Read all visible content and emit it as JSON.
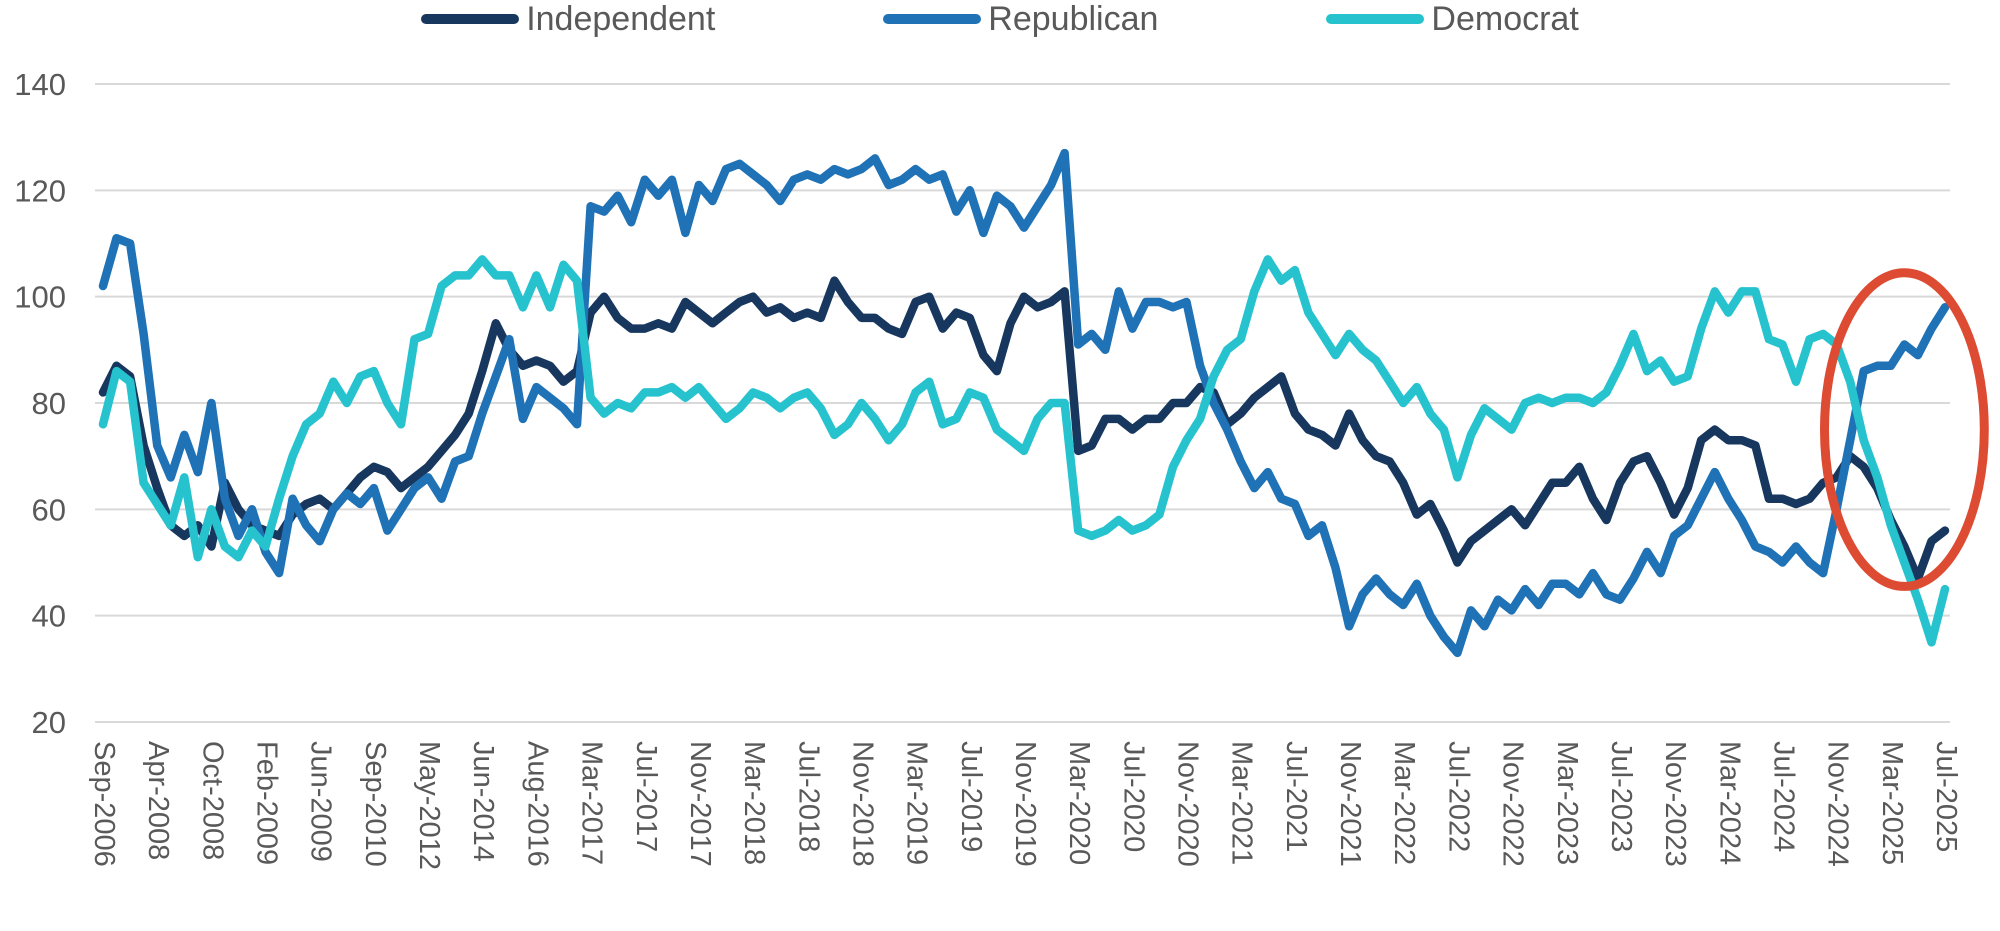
{
  "legend": {
    "position": "top-center"
  },
  "axes": {
    "y_tick_label_color": "#595959",
    "x_tick_label_color": "#595959",
    "gridline_color": "#D9D9D9"
  },
  "chart_data": {
    "type": "line",
    "title": "",
    "xlabel": "",
    "ylabel": "",
    "ylim": [
      20,
      140
    ],
    "y_ticks": [
      140,
      120,
      100,
      80,
      60,
      40,
      20
    ],
    "grid": "horizontal",
    "legend_position": "top",
    "n_points": 137,
    "label_every_n_points": 4,
    "x_tick_labels": [
      "Sep-2006",
      "Apr-2008",
      "Oct-2008",
      "Feb-2009",
      "Jun-2009",
      "Sep-2010",
      "May-2012",
      "Jun-2014",
      "Aug-2016",
      "Mar-2017",
      "Jul-2017",
      "Nov-2017",
      "Mar-2018",
      "Jul-2018",
      "Nov-2018",
      "Mar-2019",
      "Jul-2019",
      "Nov-2019",
      "Mar-2020",
      "Jul-2020",
      "Nov-2020",
      "Mar-2021",
      "Jul-2021",
      "Nov-2021",
      "Mar-2022",
      "Jul-2022",
      "Nov-2022",
      "Mar-2023",
      "Jul-2023",
      "Nov-2023",
      "Mar-2024",
      "Jul-2024",
      "Nov-2024",
      "Mar-2025",
      "Jul-2025"
    ],
    "series": [
      {
        "name": "Independent",
        "color": "#17375E",
        "values": [
          82,
          87,
          85,
          72,
          64,
          57,
          55,
          57,
          53,
          65,
          60,
          57,
          56,
          55,
          59,
          61,
          62,
          60,
          63,
          66,
          68,
          67,
          64,
          66,
          68,
          71,
          74,
          78,
          86,
          95,
          90,
          87,
          88,
          87,
          84,
          86,
          97,
          100,
          96,
          94,
          94,
          95,
          94,
          99,
          97,
          95,
          97,
          99,
          100,
          97,
          98,
          96,
          97,
          96,
          103,
          99,
          96,
          96,
          94,
          93,
          99,
          100,
          94,
          97,
          96,
          89,
          86,
          95,
          100,
          98,
          99,
          101,
          71,
          72,
          77,
          77,
          75,
          77,
          77,
          80,
          80,
          83,
          82,
          76,
          78,
          81,
          83,
          85,
          78,
          75,
          74,
          72,
          78,
          73,
          70,
          69,
          65,
          59,
          61,
          56,
          50,
          54,
          56,
          58,
          60,
          57,
          61,
          65,
          65,
          68,
          62,
          58,
          65,
          69,
          70,
          65,
          59,
          64,
          73,
          75,
          73,
          73,
          72,
          62,
          62,
          61,
          62,
          65,
          66,
          70,
          68,
          64,
          58,
          53,
          47,
          54,
          56
        ]
      },
      {
        "name": "Republican",
        "color": "#1F72B5",
        "values": [
          102,
          111,
          110,
          93,
          72,
          66,
          74,
          67,
          80,
          62,
          55,
          60,
          52,
          48,
          62,
          57,
          54,
          60,
          63,
          61,
          64,
          56,
          60,
          64,
          66,
          62,
          69,
          70,
          78,
          85,
          92,
          77,
          83,
          81,
          79,
          76,
          117,
          116,
          119,
          114,
          122,
          119,
          122,
          112,
          121,
          118,
          124,
          125,
          123,
          121,
          118,
          122,
          123,
          122,
          124,
          123,
          124,
          126,
          121,
          122,
          124,
          122,
          123,
          116,
          120,
          112,
          119,
          117,
          113,
          117,
          121,
          127,
          91,
          93,
          90,
          101,
          94,
          99,
          99,
          98,
          99,
          87,
          80,
          75,
          69,
          64,
          67,
          62,
          61,
          55,
          57,
          49,
          38,
          44,
          47,
          44,
          42,
          46,
          40,
          36,
          33,
          41,
          38,
          43,
          41,
          45,
          42,
          46,
          46,
          44,
          48,
          44,
          43,
          47,
          52,
          48,
          55,
          57,
          62,
          67,
          62,
          58,
          53,
          52,
          50,
          53,
          50,
          48,
          60,
          73,
          86,
          87,
          87,
          91,
          89,
          94,
          98
        ]
      },
      {
        "name": "Democrat",
        "color": "#26C3CF",
        "values": [
          76,
          86,
          84,
          65,
          61,
          57,
          66,
          51,
          60,
          53,
          51,
          56,
          53,
          62,
          70,
          76,
          78,
          84,
          80,
          85,
          86,
          80,
          76,
          92,
          93,
          102,
          104,
          104,
          107,
          104,
          104,
          98,
          104,
          98,
          106,
          103,
          81,
          78,
          80,
          79,
          82,
          82,
          83,
          81,
          83,
          80,
          77,
          79,
          82,
          81,
          79,
          81,
          82,
          79,
          74,
          76,
          80,
          77,
          73,
          76,
          82,
          84,
          76,
          77,
          82,
          81,
          75,
          73,
          71,
          77,
          80,
          80,
          56,
          55,
          56,
          58,
          56,
          57,
          59,
          68,
          73,
          77,
          85,
          90,
          92,
          101,
          107,
          103,
          105,
          97,
          93,
          89,
          93,
          90,
          88,
          84,
          80,
          83,
          78,
          75,
          66,
          74,
          79,
          77,
          75,
          80,
          81,
          80,
          81,
          81,
          80,
          82,
          87,
          93,
          86,
          88,
          84,
          85,
          94,
          101,
          97,
          101,
          101,
          92,
          91,
          84,
          92,
          93,
          91,
          84,
          73,
          66,
          57,
          50,
          43,
          35,
          45
        ]
      }
    ],
    "annotation": {
      "shape": "ellipse",
      "color": "#DD4B32",
      "center_index": 133,
      "center_value": 75,
      "radius_index": 5.9,
      "radius_value": 29.5,
      "stroke_width": 9
    }
  }
}
